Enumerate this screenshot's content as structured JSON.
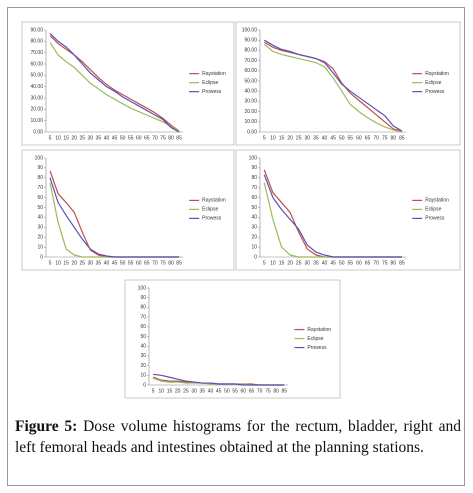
{
  "chart_data": [
    {
      "type": "line",
      "categories": [
        "5",
        "10",
        "15",
        "20",
        "25",
        "30",
        "35",
        "40",
        "45",
        "50",
        "55",
        "60",
        "65",
        "70",
        "75",
        "80",
        "85"
      ],
      "ylim": [
        0,
        90
      ],
      "yticks": [
        {
          "value": 0,
          "label": "0.00"
        },
        {
          "value": 10,
          "label": "10.00"
        },
        {
          "value": 20,
          "label": "20.00"
        },
        {
          "value": 30,
          "label": "30.00"
        },
        {
          "value": 40,
          "label": "40.00"
        },
        {
          "value": 50,
          "label": "50.00"
        },
        {
          "value": 60,
          "label": "60.00"
        },
        {
          "value": 70,
          "label": "70.00"
        },
        {
          "value": 80,
          "label": "80.00"
        },
        {
          "value": 90,
          "label": "90.00"
        }
      ],
      "grid": false,
      "legend": "right",
      "series": [
        {
          "name": "Raystation",
          "color": "#c0504d",
          "values": [
            85,
            78,
            73,
            68,
            62,
            55,
            48,
            42,
            37,
            33,
            29,
            25,
            21,
            17,
            12,
            6,
            1
          ]
        },
        {
          "name": "Eclipse",
          "color": "#9bbb59",
          "values": [
            79,
            68,
            62,
            57,
            50,
            43,
            38,
            33,
            29,
            25,
            21,
            18,
            15,
            12,
            9,
            5,
            1
          ]
        },
        {
          "name": "Prowess",
          "color": "#5b4fb5",
          "values": [
            87,
            80,
            75,
            68,
            60,
            52,
            46,
            40,
            36,
            31,
            27,
            23,
            19,
            15,
            11,
            4,
            0
          ]
        }
      ]
    },
    {
      "type": "line",
      "categories": [
        "5",
        "10",
        "15",
        "20",
        "25",
        "30",
        "35",
        "40",
        "45",
        "50",
        "55",
        "60",
        "65",
        "70",
        "75",
        "80",
        "85"
      ],
      "ylim": [
        0,
        100
      ],
      "yticks": [
        {
          "value": 0,
          "label": "0.00"
        },
        {
          "value": 10,
          "label": "10.00"
        },
        {
          "value": 20,
          "label": "20.00"
        },
        {
          "value": 30,
          "label": "30.00"
        },
        {
          "value": 40,
          "label": "40.00"
        },
        {
          "value": 50,
          "label": "50.00"
        },
        {
          "value": 60,
          "label": "60.00"
        },
        {
          "value": 70,
          "label": "70.00"
        },
        {
          "value": 80,
          "label": "80.00"
        },
        {
          "value": 90,
          "label": "90.00"
        },
        {
          "value": 100,
          "label": "100.00"
        }
      ],
      "grid": false,
      "legend": "right",
      "series": [
        {
          "name": "Raystation",
          "color": "#c0504d",
          "values": [
            88,
            83,
            80,
            78,
            76,
            74,
            72,
            69,
            62,
            48,
            38,
            31,
            24,
            17,
            10,
            3,
            1
          ]
        },
        {
          "name": "Eclipse",
          "color": "#9bbb59",
          "values": [
            86,
            79,
            76,
            74,
            72,
            70,
            68,
            64,
            53,
            40,
            27,
            20,
            14,
            9,
            5,
            2,
            0
          ]
        },
        {
          "name": "Prowess",
          "color": "#5b4fb5",
          "values": [
            90,
            85,
            81,
            79,
            76,
            74,
            72,
            68,
            58,
            47,
            40,
            34,
            28,
            22,
            16,
            6,
            1
          ]
        }
      ]
    },
    {
      "type": "line",
      "categories": [
        "5",
        "10",
        "15",
        "20",
        "25",
        "30",
        "35",
        "40",
        "45",
        "50",
        "55",
        "60",
        "65",
        "70",
        "75",
        "80",
        "85"
      ],
      "ylim": [
        0,
        100
      ],
      "yticks": [
        0,
        10,
        20,
        30,
        40,
        50,
        60,
        70,
        80,
        90,
        100
      ],
      "grid": false,
      "legend": "right",
      "series": [
        {
          "name": "Raystation",
          "color": "#c0504d",
          "values": [
            87,
            64,
            55,
            45,
            25,
            7,
            2,
            0,
            0,
            0,
            0,
            0,
            0,
            0,
            0,
            0,
            0
          ]
        },
        {
          "name": "Eclipse",
          "color": "#9bbb59",
          "values": [
            75,
            35,
            8,
            2,
            0,
            0,
            0,
            0,
            0,
            0,
            0,
            0,
            0,
            0,
            0,
            0,
            0
          ]
        },
        {
          "name": "Prowess",
          "color": "#5b4fb5",
          "values": [
            80,
            55,
            42,
            30,
            18,
            8,
            3,
            1,
            0,
            0,
            0,
            0,
            0,
            0,
            0,
            0,
            0
          ]
        }
      ]
    },
    {
      "type": "line",
      "categories": [
        "5",
        "10",
        "15",
        "20",
        "25",
        "30",
        "35",
        "40",
        "45",
        "50",
        "55",
        "60",
        "65",
        "70",
        "75",
        "80",
        "85"
      ],
      "ylim": [
        0,
        100
      ],
      "yticks": [
        0,
        10,
        20,
        30,
        40,
        50,
        60,
        70,
        80,
        90,
        100
      ],
      "grid": false,
      "legend": "right",
      "series": [
        {
          "name": "Raystation",
          "color": "#c0504d",
          "values": [
            88,
            65,
            55,
            45,
            25,
            8,
            2,
            0,
            0,
            0,
            0,
            0,
            0,
            0,
            0,
            0,
            0
          ]
        },
        {
          "name": "Eclipse",
          "color": "#9bbb59",
          "values": [
            75,
            38,
            10,
            2,
            0,
            0,
            0,
            0,
            0,
            0,
            0,
            0,
            0,
            0,
            0,
            0,
            0
          ]
        },
        {
          "name": "Prowess",
          "color": "#5b4fb5",
          "values": [
            83,
            60,
            48,
            38,
            28,
            12,
            5,
            2,
            0,
            0,
            0,
            0,
            0,
            0,
            0,
            0,
            0
          ]
        }
      ]
    },
    {
      "type": "line",
      "categories": [
        "5",
        "10",
        "15",
        "20",
        "25",
        "30",
        "35",
        "40",
        "45",
        "50",
        "55",
        "60",
        "65",
        "70",
        "75",
        "80",
        "85"
      ],
      "ylim": [
        0,
        100
      ],
      "yticks": [
        0,
        10,
        20,
        30,
        40,
        50,
        60,
        70,
        80,
        90,
        100
      ],
      "grid": false,
      "legend": "right",
      "series": [
        {
          "name": "Raystation",
          "color": "#c0504d",
          "values": [
            8,
            5,
            4,
            4,
            3,
            3,
            2,
            2,
            1,
            1,
            1,
            1,
            1,
            0,
            0,
            0,
            0
          ]
        },
        {
          "name": "Eclipse",
          "color": "#9bbb59",
          "values": [
            7,
            4,
            3,
            3,
            2,
            2,
            2,
            1,
            1,
            1,
            1,
            1,
            0,
            0,
            0,
            0,
            0
          ]
        },
        {
          "name": "Prowess",
          "color": "#5b4fb5",
          "values": [
            11,
            10,
            8,
            6,
            4,
            3,
            2,
            2,
            1,
            1,
            1,
            0,
            0,
            0,
            0,
            0,
            0
          ]
        }
      ]
    }
  ],
  "caption": {
    "label": "Figure 5:",
    "text": "Dose volume histograms for the rectum, bladder, right and left femoral heads and intestines obtained at the planning stations."
  }
}
